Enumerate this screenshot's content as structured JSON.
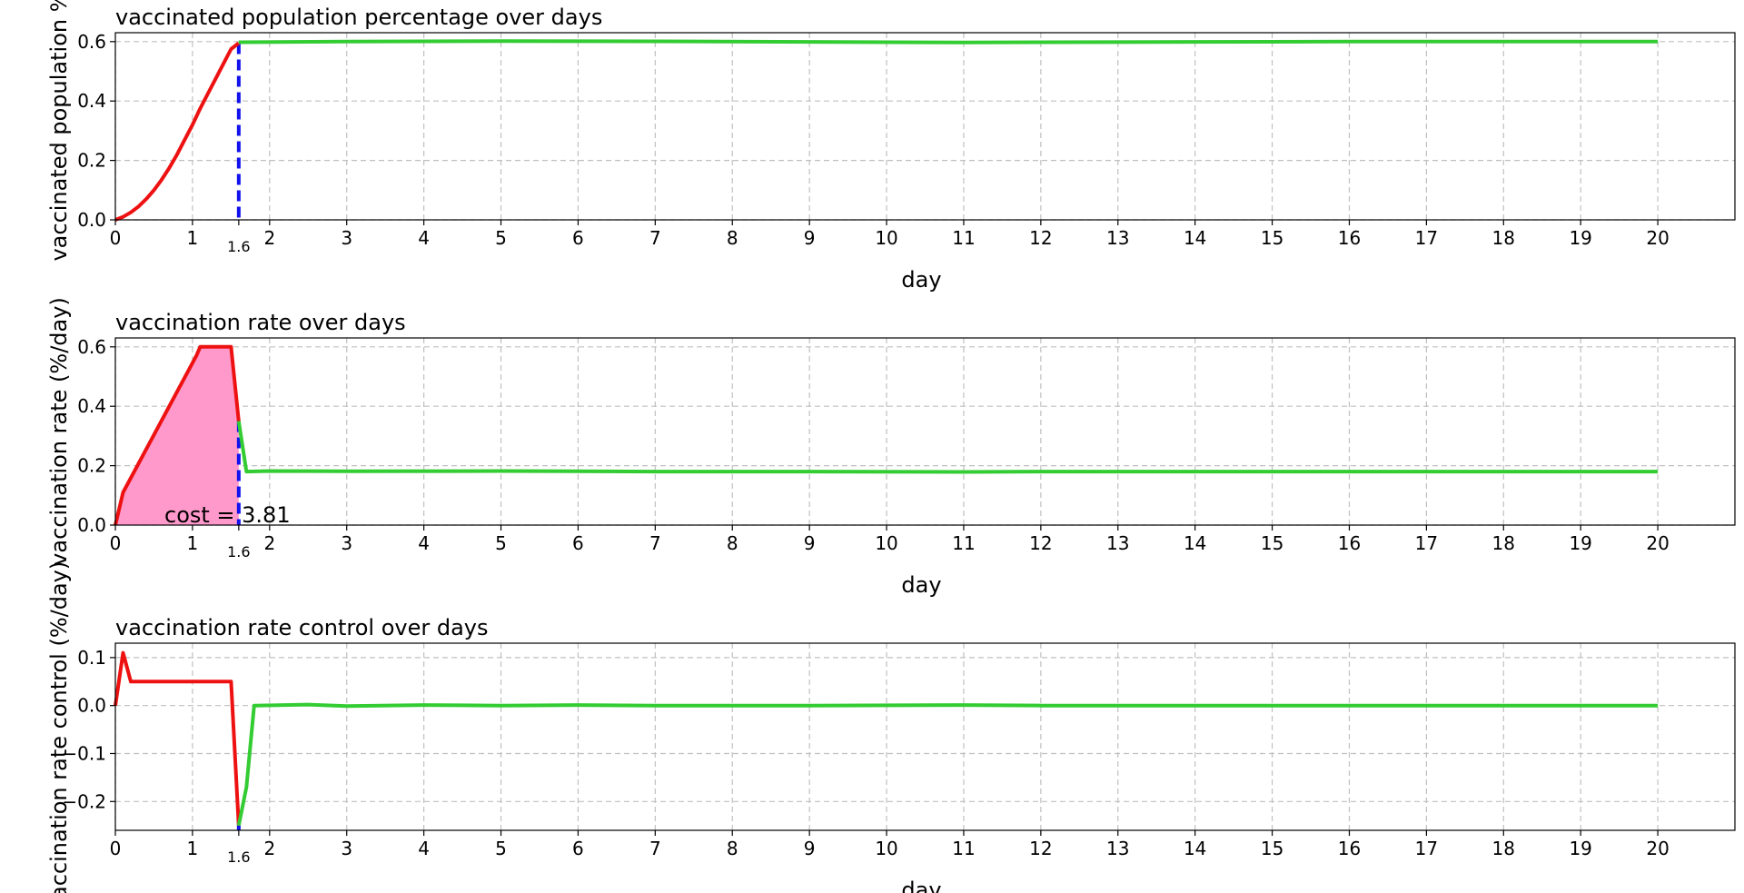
{
  "chart_data": [
    {
      "type": "line",
      "title": "vaccinated population percentage over days",
      "xlabel": "day",
      "ylabel": "vaccinated population %",
      "xlim": [
        0,
        21
      ],
      "ylim": [
        0,
        0.63
      ],
      "xticks": [
        "0",
        "1",
        "2",
        "3",
        "4",
        "5",
        "6",
        "7",
        "8",
        "9",
        "10",
        "11",
        "12",
        "13",
        "14",
        "15",
        "16",
        "17",
        "18",
        "19",
        "20"
      ],
      "yticks": [
        "0.0",
        "0.2",
        "0.4",
        "0.6"
      ],
      "ytick_values": [
        0,
        0.2,
        0.4,
        0.6
      ],
      "grid": true,
      "switch_day": 1.6,
      "switch_label": "1.6",
      "series": [
        {
          "color": "#ee1111",
          "x": [
            0,
            0.1,
            0.2,
            0.3,
            0.4,
            0.5,
            0.6,
            0.7,
            0.8,
            0.9,
            1.0,
            1.1,
            1.2,
            1.3,
            1.4,
            1.5,
            1.6
          ],
          "y": [
            0,
            0.01,
            0.025,
            0.045,
            0.07,
            0.1,
            0.135,
            0.175,
            0.22,
            0.27,
            0.32,
            0.375,
            0.425,
            0.475,
            0.525,
            0.575,
            0.595
          ]
        },
        {
          "color": "#33cc33",
          "x": [
            1.6,
            3,
            5,
            7,
            9,
            11,
            12,
            14,
            16,
            18,
            20
          ],
          "y": [
            0.598,
            0.6,
            0.602,
            0.601,
            0.599,
            0.597,
            0.598,
            0.599,
            0.6,
            0.6,
            0.6
          ]
        }
      ]
    },
    {
      "type": "line",
      "title": "vaccination rate over days",
      "xlabel": "day",
      "ylabel": "vaccination rate (%/day)",
      "xlim": [
        0,
        21
      ],
      "ylim": [
        0,
        0.63
      ],
      "xticks": [
        "0",
        "1",
        "2",
        "3",
        "4",
        "5",
        "6",
        "7",
        "8",
        "9",
        "10",
        "11",
        "12",
        "13",
        "14",
        "15",
        "16",
        "17",
        "18",
        "19",
        "20"
      ],
      "yticks": [
        "0.0",
        "0.2",
        "0.4",
        "0.6"
      ],
      "ytick_values": [
        0,
        0.2,
        0.4,
        0.6
      ],
      "grid": true,
      "switch_day": 1.6,
      "switch_label": "1.6",
      "annotation": "cost = 3.81",
      "fill_color": "#ff99cc",
      "series": [
        {
          "color": "#ee1111",
          "x": [
            0,
            0.1,
            1.05,
            1.1,
            1.5,
            1.6
          ],
          "y": [
            0,
            0.11,
            0.57,
            0.6,
            0.6,
            0.35
          ]
        },
        {
          "color": "#33cc33",
          "x": [
            1.6,
            1.7,
            2,
            3,
            5,
            7,
            9,
            11,
            12,
            14,
            16,
            18,
            20
          ],
          "y": [
            0.35,
            0.18,
            0.182,
            0.181,
            0.182,
            0.18,
            0.18,
            0.179,
            0.18,
            0.18,
            0.18,
            0.18,
            0.18
          ]
        }
      ]
    },
    {
      "type": "line",
      "title": "vaccination rate control over days",
      "xlabel": "day",
      "ylabel": "vaccination rate control (%/day)",
      "xlim": [
        0,
        21
      ],
      "ylim": [
        -0.26,
        0.13
      ],
      "xticks": [
        "0",
        "1",
        "2",
        "3",
        "4",
        "5",
        "6",
        "7",
        "8",
        "9",
        "10",
        "11",
        "12",
        "13",
        "14",
        "15",
        "16",
        "17",
        "18",
        "19",
        "20"
      ],
      "yticks": [
        "−0.2",
        "−0.1",
        "0.0",
        "0.1"
      ],
      "ytick_values": [
        -0.2,
        -0.1,
        0,
        0.1
      ],
      "grid": true,
      "switch_day": 1.6,
      "switch_label": "1.6",
      "series": [
        {
          "color": "#ee1111",
          "x": [
            0,
            0.1,
            0.2,
            1.5,
            1.6
          ],
          "y": [
            0,
            0.11,
            0.05,
            0.05,
            -0.25
          ]
        },
        {
          "color": "#33cc33",
          "x": [
            1.6,
            1.7,
            1.8,
            2.5,
            3,
            4,
            5,
            6,
            7,
            9,
            11,
            12,
            14,
            16,
            18,
            20
          ],
          "y": [
            -0.25,
            -0.17,
            0,
            0.002,
            -0.001,
            0.001,
            0,
            0.001,
            0,
            0,
            0.001,
            0,
            0,
            0,
            0,
            0
          ]
        }
      ]
    }
  ]
}
